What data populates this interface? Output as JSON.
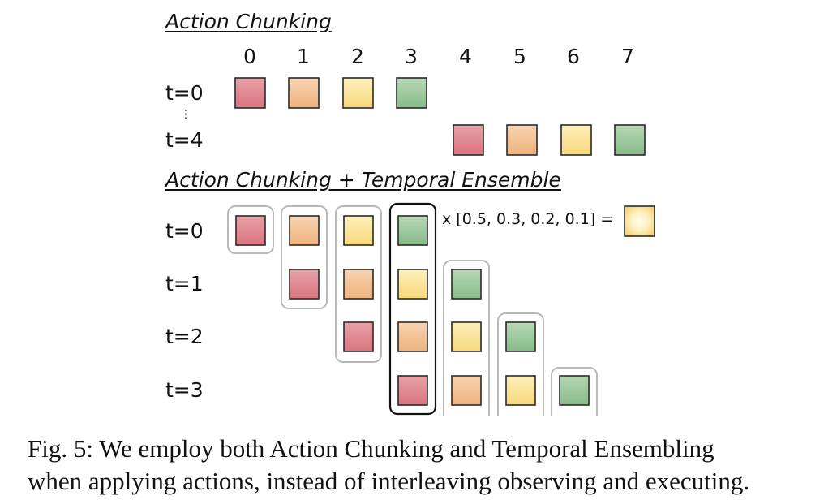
{
  "colors": {
    "red": "#de8a92",
    "orange": "#f3c297",
    "yellow": "#fbe59b",
    "green": "#9fca9f",
    "group_outline": "#b9b9b9",
    "highlight_outline": "#111111"
  },
  "section1": {
    "title": "Action Chunking",
    "columns": [
      "0",
      "1",
      "2",
      "3",
      "4",
      "5",
      "6",
      "7"
    ],
    "rows": [
      "t=0",
      "t=4"
    ],
    "ellipsis": "⋮"
  },
  "section2": {
    "title": "Action Chunking + Temporal Ensemble",
    "rows": [
      "t=0",
      "t=1",
      "t=2",
      "t=3"
    ],
    "formula": "x [0.5, 0.3, 0.2, 0.1] ="
  },
  "caption": {
    "label": "Fig. 5:",
    "text": "We employ both Action Chunking and Temporal Ensembling",
    "line2": "when applying actions, instead of interleaving observing and executing."
  }
}
